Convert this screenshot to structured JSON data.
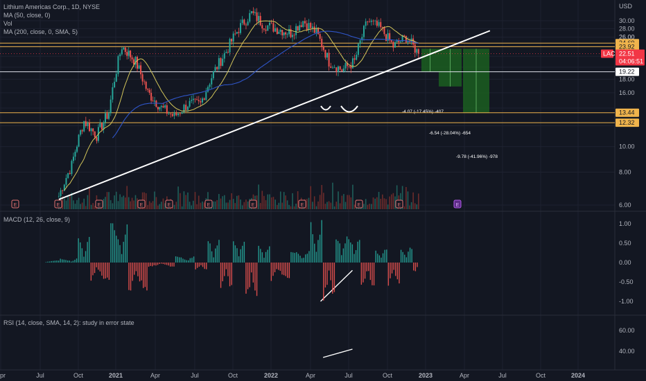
{
  "legend": {
    "title": "Lithium Americas Corp., 1D, NYSE",
    "ma50": "MA (50, close, 0)",
    "vol": "Vol",
    "ma200": "MA (200, close, 0, SMA, 5)",
    "macd": "MACD (12, 26, close, 9)",
    "rsi": "RSI (14, close, SMA, 14, 2): study in error state"
  },
  "currency": "USD",
  "colors": {
    "background": "#131722",
    "up": "#26a69a",
    "down": "#ef5350",
    "ma50": "#d4c65a",
    "ma200": "#2f55c8",
    "hline": "#f0b44c",
    "trend": "#ffffff",
    "target_box": "#1b5e20",
    "price_tag": "#f23645"
  },
  "price_tag": {
    "symbol": "LAC",
    "price": "22.51",
    "countdown": "04:06:51"
  },
  "level_labels": [
    "26.00",
    "24.69",
    "23.92",
    "19.22",
    "13.44",
    "12.32"
  ],
  "projections": [
    "-4.07 (-17.45%) -407",
    "-6.54 (-28.04%) -654",
    "-9.78 (-41.96%) -978"
  ],
  "earnings_marker": "E",
  "chart_data": [
    {
      "type": "candlestick",
      "title": "Lithium Americas Corp., 1D, NYSE",
      "y_scale": "log",
      "yticks": [
        30.0,
        28.0,
        26.0,
        24.0,
        22.0,
        20.0,
        18.0,
        16.0,
        14.0,
        12.0,
        10.0,
        8.0,
        6.0
      ],
      "ytick_labels": [
        "30.00",
        "28.00",
        "26.00",
        "24.00",
        "22.00",
        "20.00",
        "18.00",
        "16.00",
        "14.00",
        "12.00",
        "10.00",
        "8.00",
        "6.00"
      ],
      "horizontal_levels": [
        24.69,
        23.92,
        19.22,
        13.44,
        12.32
      ],
      "last_price": 22.51,
      "trendline": {
        "from": {
          "date": "2020-08-15",
          "price": 6.3
        },
        "to": {
          "date": "2023-06-01",
          "price": 27.5
        }
      },
      "projections": [
        {
          "label": "-4.07 (-17.45%) -407",
          "from_price": 23.5,
          "to_price": 19.2
        },
        {
          "label": "-6.54 (-28.04%) -654",
          "from_price": 23.5,
          "to_price": 16.9
        },
        {
          "label": "-9.78 (-41.96%) -978",
          "from_price": 23.5,
          "to_price": 13.4
        }
      ],
      "approx_monthly_close": [
        {
          "date": "2020-08",
          "close": 6.5
        },
        {
          "date": "2020-09",
          "close": 8.5
        },
        {
          "date": "2020-10",
          "close": 12.5
        },
        {
          "date": "2020-11",
          "close": 11.0
        },
        {
          "date": "2020-12",
          "close": 13.5
        },
        {
          "date": "2021-01",
          "close": 24.0
        },
        {
          "date": "2021-02",
          "close": 21.0
        },
        {
          "date": "2021-03",
          "close": 16.0
        },
        {
          "date": "2021-04",
          "close": 14.0
        },
        {
          "date": "2021-05",
          "close": 13.0
        },
        {
          "date": "2021-06",
          "close": 14.5
        },
        {
          "date": "2021-07",
          "close": 14.5
        },
        {
          "date": "2021-08",
          "close": 19.0
        },
        {
          "date": "2021-09",
          "close": 23.0
        },
        {
          "date": "2021-10",
          "close": 28.0
        },
        {
          "date": "2021-11",
          "close": 32.0
        },
        {
          "date": "2021-12",
          "close": 29.0
        },
        {
          "date": "2022-01",
          "close": 28.0
        },
        {
          "date": "2022-02",
          "close": 27.0
        },
        {
          "date": "2022-03",
          "close": 30.0
        },
        {
          "date": "2022-04",
          "close": 27.0
        },
        {
          "date": "2022-05",
          "close": 21.0
        },
        {
          "date": "2022-06",
          "close": 19.5
        },
        {
          "date": "2022-07",
          "close": 21.0
        },
        {
          "date": "2022-08",
          "close": 30.0
        },
        {
          "date": "2022-09",
          "close": 28.0
        },
        {
          "date": "2022-10",
          "close": 24.0
        },
        {
          "date": "2022-11",
          "close": 26.0
        },
        {
          "date": "2022-12",
          "close": 22.51
        }
      ]
    },
    {
      "type": "bar",
      "title": "MACD (12, 26, close, 9)",
      "yticks": [
        1.0,
        0.5,
        0.0,
        -0.5,
        -1.0
      ],
      "ytick_labels": [
        "1.00",
        "0.50",
        "0.00",
        "-0.50",
        "-1.00"
      ],
      "approx_histogram": [
        {
          "date": "2020-07",
          "value": 0.05
        },
        {
          "date": "2020-09",
          "value": 0.1
        },
        {
          "date": "2020-10",
          "value": 0.6
        },
        {
          "date": "2020-11",
          "value": -0.45
        },
        {
          "date": "2021-01",
          "value": 0.95
        },
        {
          "date": "2021-02",
          "value": -0.7
        },
        {
          "date": "2021-04",
          "value": -0.1
        },
        {
          "date": "2021-06",
          "value": 0.15
        },
        {
          "date": "2021-07",
          "value": -0.2
        },
        {
          "date": "2021-08",
          "value": 0.55
        },
        {
          "date": "2021-09",
          "value": -0.65
        },
        {
          "date": "2021-10",
          "value": 0.6
        },
        {
          "date": "2021-11",
          "value": -0.95
        },
        {
          "date": "2021-12",
          "value": 0.45
        },
        {
          "date": "2022-01",
          "value": -0.45
        },
        {
          "date": "2022-03",
          "value": 0.3
        },
        {
          "date": "2022-04",
          "value": 0.98
        },
        {
          "date": "2022-05",
          "value": -0.9
        },
        {
          "date": "2022-06",
          "value": 0.7
        },
        {
          "date": "2022-07",
          "value": 0.65
        },
        {
          "date": "2022-08",
          "value": -0.6
        },
        {
          "date": "2022-09",
          "value": 0.35
        },
        {
          "date": "2022-10",
          "value": -0.55
        },
        {
          "date": "2022-11",
          "value": 0.4
        },
        {
          "date": "2022-12",
          "value": -0.25
        }
      ],
      "annotation_line": {
        "from": {
          "date": "2022-04-25",
          "value": -1.0
        },
        "to": {
          "date": "2022-07-10",
          "value": -0.2
        }
      }
    },
    {
      "type": "line",
      "title": "RSI (14, close, SMA, 14, 2): study in error state",
      "yticks": [
        60.0,
        40.0
      ],
      "ytick_labels": [
        "60.00",
        "40.00"
      ],
      "annotation_line": {
        "from": {
          "date": "2022-05-01",
          "value": 34
        },
        "to": {
          "date": "2022-07-10",
          "value": 42
        }
      }
    }
  ],
  "x_axis": {
    "labels": [
      "Apr",
      "Jul",
      "Oct",
      "2021",
      "Apr",
      "Jul",
      "Oct",
      "2022",
      "Apr",
      "Jul",
      "Oct",
      "2023",
      "Apr",
      "Jul",
      "Oct",
      "2024"
    ],
    "dates": [
      "2020-04-01",
      "2020-07-01",
      "2020-10-01",
      "2021-01-01",
      "2021-04-01",
      "2021-07-01",
      "2021-10-01",
      "2022-01-01",
      "2022-04-01",
      "2022-07-01",
      "2022-10-01",
      "2023-01-01",
      "2023-04-01",
      "2023-07-01",
      "2023-10-01",
      "2024-01-01"
    ]
  }
}
